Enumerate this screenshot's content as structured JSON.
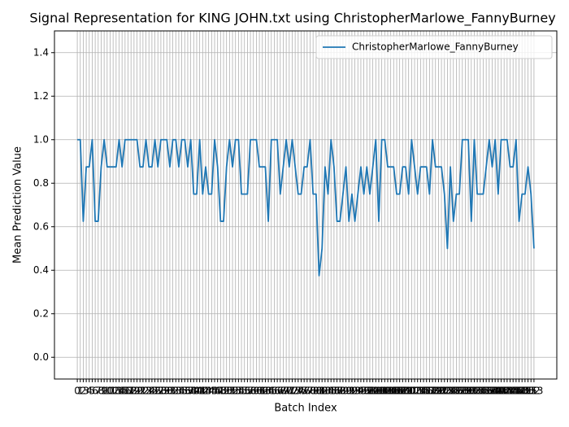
{
  "chart_data": {
    "type": "line",
    "title": "Signal Representation for KING JOHN.txt using ChristopherMarlowe_FannyBurney",
    "xlabel": "Batch Index",
    "ylabel": "Mean Prediction Value",
    "x": [
      0,
      1,
      2,
      3,
      4,
      5,
      6,
      7,
      8,
      9,
      10,
      11,
      12,
      13,
      14,
      15,
      16,
      17,
      18,
      19,
      20,
      21,
      22,
      23,
      24,
      25,
      26,
      27,
      28,
      29,
      30,
      31,
      32,
      33,
      34,
      35,
      36,
      37,
      38,
      39,
      40,
      41,
      42,
      43,
      44,
      45,
      46,
      47,
      48,
      49,
      50,
      51,
      52,
      53,
      54,
      55,
      56,
      57,
      58,
      59,
      60,
      61,
      62,
      63,
      64,
      65,
      66,
      67,
      68,
      69,
      70,
      71,
      72,
      73,
      74,
      75,
      76,
      77,
      78,
      79,
      80,
      81,
      82,
      83,
      84,
      85,
      86,
      87,
      88,
      89,
      90,
      91,
      92,
      93,
      94,
      95,
      96,
      97,
      98,
      99,
      100,
      101,
      102,
      103,
      104,
      105,
      106,
      107,
      108,
      109,
      110,
      111,
      112,
      113,
      114,
      115,
      116,
      117,
      118,
      119,
      120,
      121,
      122,
      123,
      124,
      125,
      126,
      127,
      128,
      129,
      130,
      131,
      132,
      133,
      134,
      135,
      136,
      137,
      138,
      139,
      140,
      141,
      142,
      143,
      144,
      145,
      146,
      147,
      148,
      149,
      150,
      151,
      152,
      153
    ],
    "series": [
      {
        "name": "ChristopherMarlowe_FannyBurney",
        "color": "#1f77b4",
        "values": [
          1,
          1,
          0.625,
          0.875,
          0.875,
          1,
          0.625,
          0.625,
          0.875,
          1,
          0.875,
          0.875,
          0.875,
          0.875,
          1,
          0.875,
          1,
          1,
          1,
          1,
          1,
          0.875,
          0.875,
          1,
          0.875,
          0.875,
          1,
          0.875,
          1,
          1,
          1,
          0.875,
          1,
          1,
          0.875,
          1,
          1,
          0.875,
          1,
          0.75,
          0.75,
          1,
          0.75,
          0.875,
          0.75,
          0.75,
          1,
          0.875,
          0.625,
          0.625,
          0.875,
          1,
          0.875,
          1,
          1,
          0.75,
          0.75,
          0.75,
          1,
          1,
          1,
          0.875,
          0.875,
          0.875,
          0.625,
          1,
          1,
          1,
          0.75,
          0.875,
          1,
          0.875,
          1,
          0.875,
          0.75,
          0.75,
          0.875,
          0.875,
          1,
          0.75,
          0.75,
          0.375,
          0.5,
          0.875,
          0.75,
          1,
          0.875,
          0.625,
          0.625,
          0.75,
          0.875,
          0.625,
          0.75,
          0.625,
          0.75,
          0.875,
          0.75,
          0.875,
          0.75,
          0.875,
          1,
          0.625,
          1,
          1,
          0.875,
          0.875,
          0.875,
          0.75,
          0.75,
          0.875,
          0.875,
          0.75,
          1,
          0.875,
          0.75,
          0.875,
          0.875,
          0.875,
          0.75,
          1,
          0.875,
          0.875,
          0.875,
          0.75,
          0.5,
          0.875,
          0.625,
          0.75,
          0.75,
          1,
          1,
          1,
          0.625,
          1,
          0.75,
          0.75,
          0.75,
          0.875,
          1,
          0.875,
          1,
          0.75,
          1,
          1,
          1,
          0.875,
          0.875,
          1,
          0.625,
          0.75,
          0.75,
          0.875,
          0.75,
          0.5
        ]
      }
    ],
    "xlim": [
      -7.65,
      160.65
    ],
    "ylim": [
      -0.1,
      1.5
    ],
    "xticks": [
      0,
      1,
      2,
      3,
      4,
      5,
      6,
      7,
      8,
      9,
      10,
      11,
      12,
      13,
      14,
      15,
      16,
      17,
      18,
      19,
      20,
      21,
      22,
      23,
      24,
      25,
      26,
      27,
      28,
      29,
      30,
      31,
      32,
      33,
      34,
      35,
      36,
      37,
      38,
      39,
      40,
      41,
      42,
      43,
      44,
      45,
      46,
      47,
      48,
      49,
      50,
      51,
      52,
      53,
      54,
      55,
      56,
      57,
      58,
      59,
      60,
      61,
      62,
      63,
      64,
      65,
      66,
      67,
      68,
      69,
      70,
      71,
      72,
      73,
      74,
      75,
      76,
      77,
      78,
      79,
      80,
      81,
      82,
      83,
      84,
      85,
      86,
      87,
      88,
      89,
      90,
      91,
      92,
      93,
      94,
      95,
      96,
      97,
      98,
      99,
      100,
      101,
      102,
      103,
      104,
      105,
      106,
      107,
      108,
      109,
      110,
      111,
      112,
      113,
      114,
      115,
      116,
      117,
      118,
      119,
      120,
      121,
      122,
      123,
      124,
      125,
      126,
      127,
      128,
      129,
      130,
      131,
      132,
      133,
      134,
      135,
      136,
      137,
      138,
      139,
      140,
      141,
      142,
      143,
      144,
      145,
      146,
      147,
      148,
      149,
      150,
      151,
      152,
      153
    ],
    "yticks": [
      {
        "value": 0,
        "label": "0.0"
      },
      0.2,
      0.4,
      0.6,
      0.8,
      {
        "value": 1,
        "label": "1.0"
      },
      1.2,
      1.4
    ],
    "grid": true,
    "legend": "upper right"
  }
}
